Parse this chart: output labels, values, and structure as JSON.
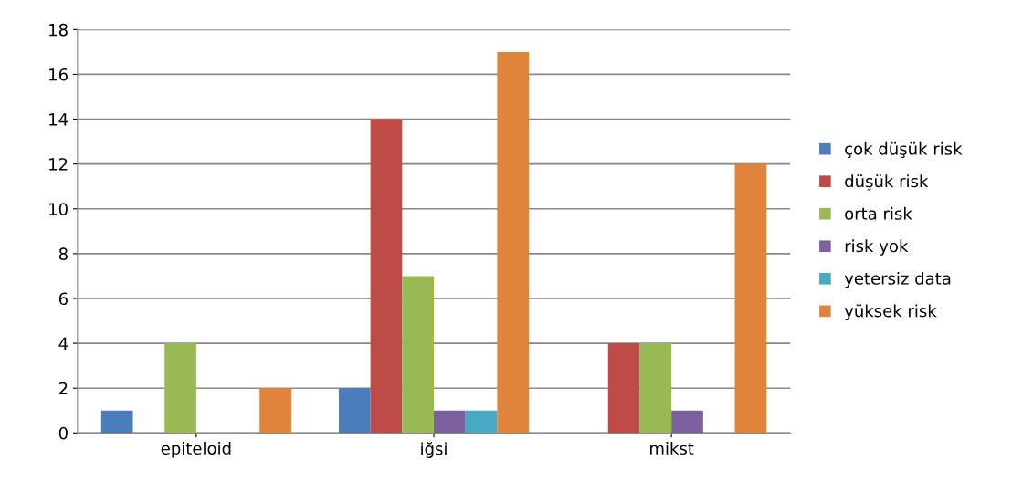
{
  "chart_data": {
    "type": "bar",
    "categories": [
      "epiteloid",
      "iğsi",
      "mikst"
    ],
    "series": [
      {
        "name": "çok düşük risk",
        "color": "#4a7ebb",
        "values": [
          1,
          2,
          0
        ]
      },
      {
        "name": "düşük risk",
        "color": "#be4b48",
        "values": [
          0,
          14,
          4
        ]
      },
      {
        "name": "orta risk",
        "color": "#98b954",
        "values": [
          4,
          7,
          4
        ]
      },
      {
        "name": "risk yok",
        "color": "#7d60a0",
        "values": [
          0,
          1,
          1
        ]
      },
      {
        "name": "yetersiz data",
        "color": "#46aac5",
        "values": [
          0,
          1,
          0
        ]
      },
      {
        "name": "yüksek risk",
        "color": "#e0843b",
        "values": [
          2,
          17,
          12
        ]
      }
    ],
    "ylim": [
      0,
      18
    ],
    "yticks": [
      0,
      2,
      4,
      6,
      8,
      10,
      12,
      14,
      16,
      18
    ],
    "grid": "y",
    "legend": "right"
  }
}
